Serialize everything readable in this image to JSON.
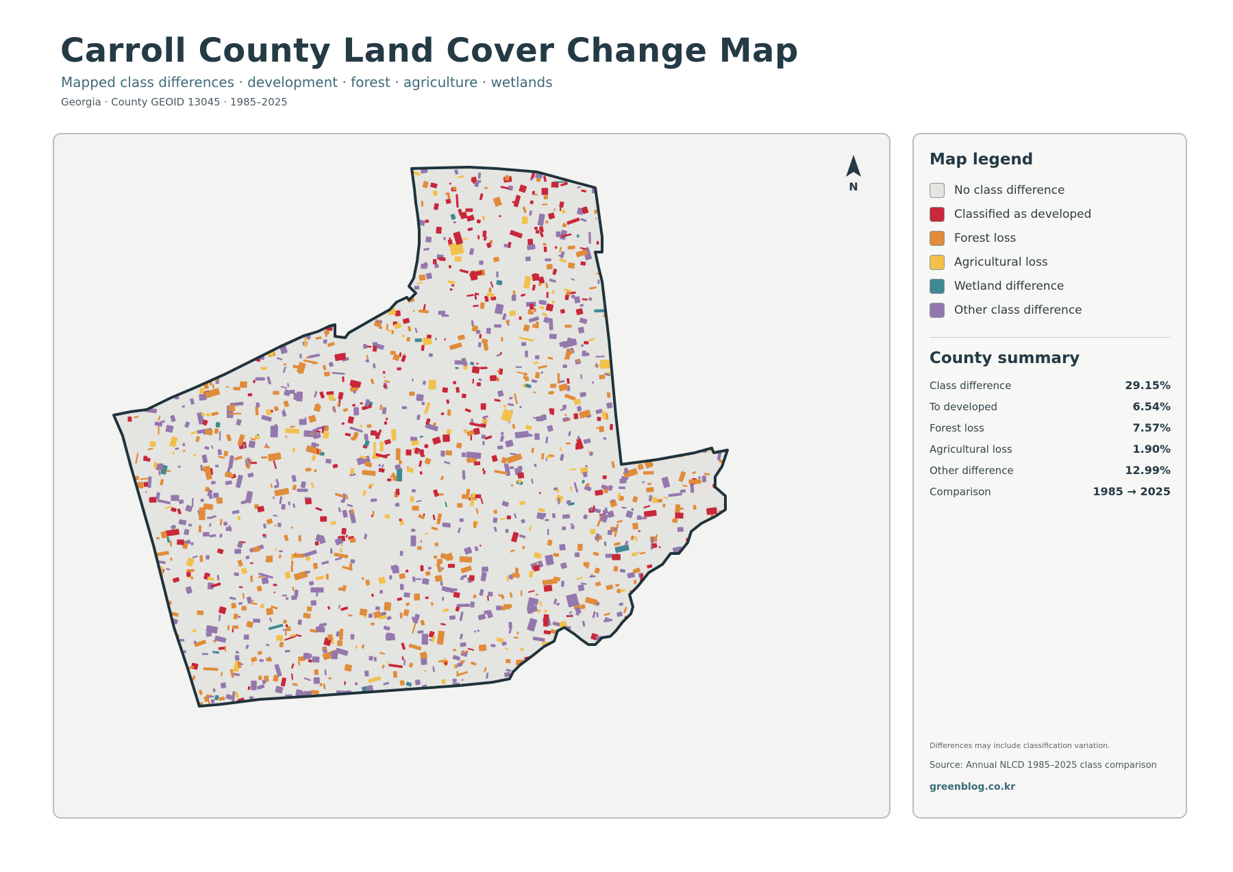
{
  "header": {
    "title": "Carroll County Land Cover Change Map",
    "subtitle": "Mapped class differences · development · forest · agriculture · wetlands",
    "meta": "Georgia · County GEOID 13045 · 1985–2025"
  },
  "map": {
    "north_label": "N",
    "colors": {
      "no_difference": "#e4e4e1",
      "developed": "#c8283a",
      "forest_loss": "#e08c3a",
      "agricultural_loss": "#f2c14c",
      "wetland": "#3f8a92",
      "other": "#9478ad",
      "boundary": "#1f333c"
    }
  },
  "legend": {
    "title": "Map legend",
    "items": [
      {
        "label": "No class difference",
        "color": "#e4e4e1"
      },
      {
        "label": "Classified as developed",
        "color": "#c8283a"
      },
      {
        "label": "Forest loss",
        "color": "#e08c3a"
      },
      {
        "label": "Agricultural loss",
        "color": "#f2c14c"
      },
      {
        "label": "Wetland difference",
        "color": "#3f8a92"
      },
      {
        "label": "Other class difference",
        "color": "#9478ad"
      }
    ]
  },
  "summary": {
    "title": "County summary",
    "rows": [
      {
        "label": "Class difference",
        "value": "29.15%"
      },
      {
        "label": "To developed",
        "value": "6.54%"
      },
      {
        "label": "Forest loss",
        "value": "7.57%"
      },
      {
        "label": "Agricultural loss",
        "value": "1.90%"
      },
      {
        "label": "Other difference",
        "value": "12.99%"
      },
      {
        "label": "Comparison",
        "value": "1985 → 2025"
      }
    ]
  },
  "footer": {
    "note": "Differences may include classification variation.",
    "source": "Source: Annual NLCD 1985–2025 class comparison",
    "brand": "greenblog.co.kr"
  }
}
